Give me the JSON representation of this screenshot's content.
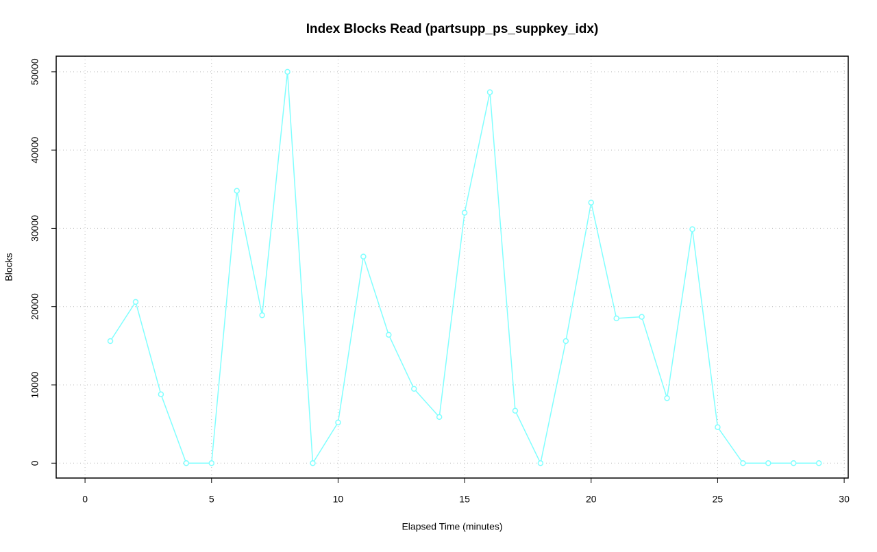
{
  "chart_data": {
    "type": "line",
    "title": "Index Blocks Read (partsupp_ps_suppkey_idx)",
    "x_label": "Elapsed Time (minutes)",
    "y_label": "Blocks",
    "x": [
      1,
      2,
      3,
      4,
      5,
      6,
      7,
      8,
      9,
      10,
      11,
      12,
      13,
      14,
      15,
      16,
      17,
      18,
      19,
      20,
      21,
      22,
      23,
      24,
      25,
      26,
      27,
      28,
      29
    ],
    "series": [
      {
        "color": "#80ffff",
        "values": [
          15600,
          20600,
          8800,
          0,
          0,
          34800,
          18900,
          50000,
          0,
          5200,
          26400,
          16400,
          9500,
          5900,
          32000,
          47400,
          6700,
          0,
          15600,
          33300,
          18500,
          18700,
          8300,
          29900,
          4600,
          0,
          0,
          0,
          0
        ]
      }
    ],
    "xlim": [
      -1.14,
      30.16
    ],
    "xticks": [
      0,
      5,
      10,
      15,
      20,
      25,
      30
    ],
    "ylim": [
      -1900,
      52000
    ],
    "yticks": [
      0,
      10000,
      20000,
      30000,
      40000,
      50000
    ],
    "grid": true
  }
}
